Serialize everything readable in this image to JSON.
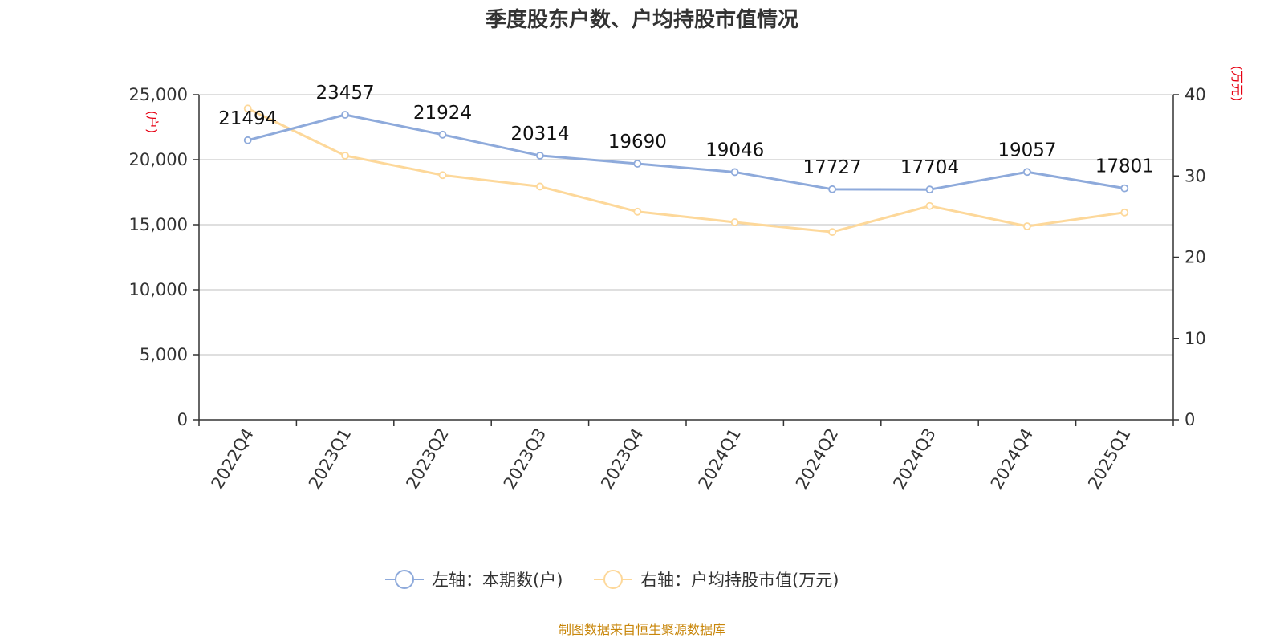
{
  "chart_data": {
    "type": "line",
    "title": "季度股东户数、户均持股市值情况",
    "categories": [
      "2022Q4",
      "2023Q1",
      "2023Q2",
      "2023Q3",
      "2023Q4",
      "2024Q1",
      "2024Q2",
      "2024Q3",
      "2024Q4",
      "2025Q1"
    ],
    "left_axis": {
      "unit": "(户)",
      "min": 0,
      "max": 25000,
      "ticks": [
        0,
        5000,
        10000,
        15000,
        20000,
        25000
      ],
      "tick_labels": [
        "0",
        "5,000",
        "10,000",
        "15,000",
        "20,000",
        "25,000"
      ]
    },
    "right_axis": {
      "unit": "(万元)",
      "min": 0,
      "max": 40,
      "ticks": [
        0,
        10,
        20,
        30,
        40
      ],
      "tick_labels": [
        "0",
        "10",
        "20",
        "30",
        "40"
      ]
    },
    "series": [
      {
        "name": "左轴：本期数(户)",
        "axis": "left",
        "color": "#8eaadb",
        "values": [
          21494,
          23457,
          21924,
          20314,
          19690,
          19046,
          17727,
          17704,
          19057,
          17801
        ],
        "labels": [
          "21494",
          "23457",
          "21924",
          "20314",
          "19690",
          "19046",
          "17727",
          "17704",
          "19057",
          "17801"
        ]
      },
      {
        "name": "右轴：户均持股市值(万元)",
        "axis": "right",
        "color": "#fdd89a",
        "values": [
          38.3,
          32.5,
          30.1,
          28.7,
          25.6,
          24.3,
          23.1,
          26.3,
          23.8,
          25.5
        ]
      }
    ],
    "grid": true,
    "legend_position": "bottom-center"
  },
  "source": "制图数据来自恒生聚源数据库"
}
